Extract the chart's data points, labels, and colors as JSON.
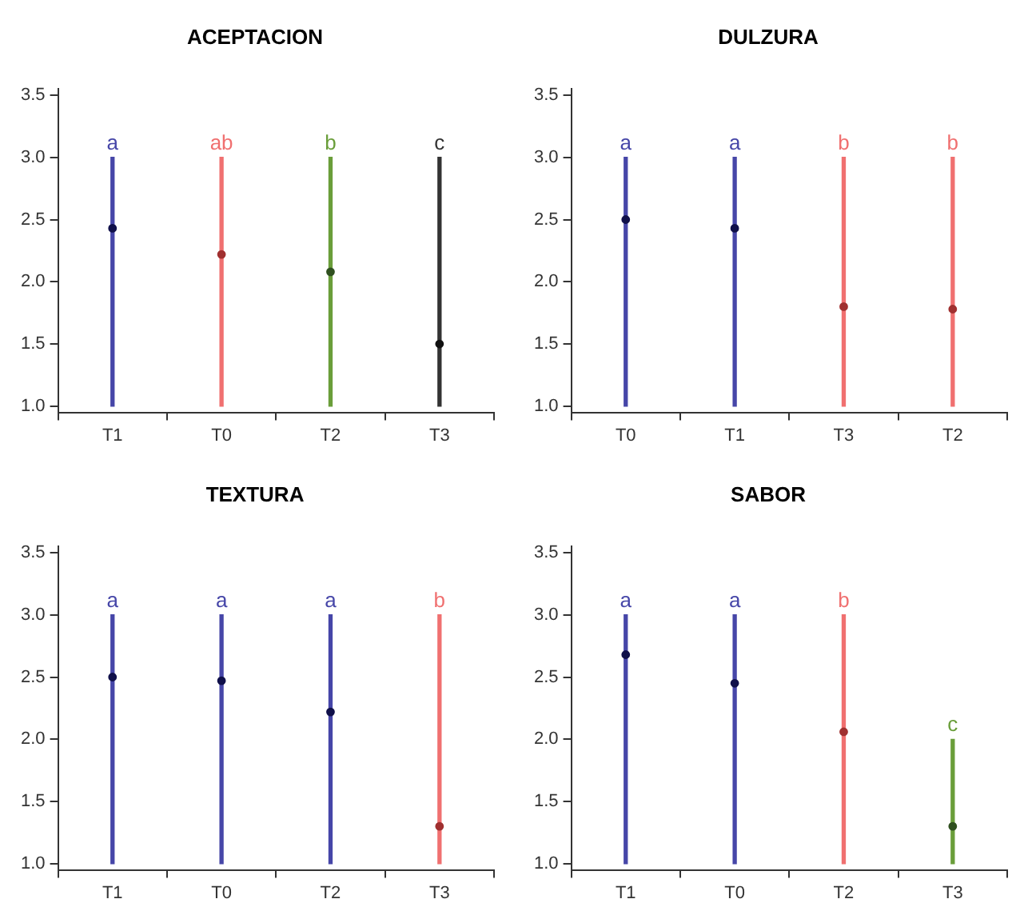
{
  "chart_data": [
    {
      "type": "bar",
      "title": "ACEPTACION",
      "categories": [
        "T1",
        "T0",
        "T2",
        "T3"
      ],
      "ylim": [
        0.95,
        3.55
      ],
      "yticks": [
        {
          "value": 1,
          "label": "1.0"
        },
        {
          "value": 1.5,
          "label": "1.5"
        },
        {
          "value": 2,
          "label": "2.0"
        },
        {
          "value": 2.5,
          "label": "2.5"
        },
        {
          "value": 3,
          "label": "3.0"
        },
        {
          "value": 3.5,
          "label": "3.5"
        }
      ],
      "grid": false,
      "legend": false,
      "marker": "circle",
      "series": [
        {
          "base": [
            1,
            1,
            1,
            1
          ],
          "values": [
            2,
            2,
            2,
            2
          ],
          "colors": [
            "#4646a8",
            "#f07070",
            "#6a9e3a",
            "#333333"
          ]
        },
        {
          "type": "scatter",
          "x": [
            "T1",
            "T0",
            "T2",
            "T3"
          ],
          "values": [
            2.43,
            2.22,
            2.08,
            1.5
          ],
          "colors": [
            "#10104a",
            "#a03030",
            "#305020",
            "#111111"
          ]
        }
      ],
      "annotations": [
        "a",
        "ab",
        "b",
        "c"
      ]
    },
    {
      "type": "bar",
      "title": "DULZURA",
      "categories": [
        "T0",
        "T1",
        "T3",
        "T2"
      ],
      "ylim": [
        0.95,
        3.55
      ],
      "yticks": [
        {
          "value": 1,
          "label": "1.0"
        },
        {
          "value": 1.5,
          "label": "1.5"
        },
        {
          "value": 2,
          "label": "2.0"
        },
        {
          "value": 2.5,
          "label": "2.5"
        },
        {
          "value": 3,
          "label": "3.0"
        },
        {
          "value": 3.5,
          "label": "3.5"
        }
      ],
      "grid": false,
      "legend": false,
      "marker": "circle",
      "series": [
        {
          "base": [
            1,
            1,
            1,
            1
          ],
          "values": [
            2,
            2,
            2,
            2
          ],
          "colors": [
            "#4646a8",
            "#4646a8",
            "#f07070",
            "#f07070"
          ]
        },
        {
          "type": "scatter",
          "x": [
            "T0",
            "T1",
            "T3",
            "T2"
          ],
          "values": [
            2.5,
            2.43,
            1.8,
            1.78
          ],
          "colors": [
            "#10104a",
            "#10104a",
            "#a03030",
            "#a03030"
          ]
        }
      ],
      "annotations": [
        "a",
        "a",
        "b",
        "b"
      ]
    },
    {
      "type": "bar",
      "title": "TEXTURA",
      "categories": [
        "T1",
        "T0",
        "T2",
        "T3"
      ],
      "ylim": [
        0.95,
        3.55
      ],
      "yticks": [
        {
          "value": 1,
          "label": "1.0"
        },
        {
          "value": 1.5,
          "label": "1.5"
        },
        {
          "value": 2,
          "label": "2.0"
        },
        {
          "value": 2.5,
          "label": "2.5"
        },
        {
          "value": 3,
          "label": "3.0"
        },
        {
          "value": 3.5,
          "label": "3.5"
        }
      ],
      "grid": false,
      "legend": false,
      "marker": "circle",
      "series": [
        {
          "base": [
            1,
            1,
            1,
            1
          ],
          "values": [
            2,
            2,
            2,
            2
          ],
          "colors": [
            "#4646a8",
            "#4646a8",
            "#4646a8",
            "#f07070"
          ]
        },
        {
          "type": "scatter",
          "x": [
            "T1",
            "T0",
            "T2",
            "T3"
          ],
          "values": [
            2.5,
            2.47,
            2.22,
            1.3
          ],
          "colors": [
            "#10104a",
            "#10104a",
            "#10104a",
            "#a03030"
          ]
        }
      ],
      "annotations": [
        "a",
        "a",
        "a",
        "b"
      ]
    },
    {
      "type": "bar",
      "title": "SABOR",
      "categories": [
        "T1",
        "T0",
        "T2",
        "T3"
      ],
      "ylim": [
        0.95,
        3.55
      ],
      "yticks": [
        {
          "value": 1,
          "label": "1.0"
        },
        {
          "value": 1.5,
          "label": "1.5"
        },
        {
          "value": 2,
          "label": "2.0"
        },
        {
          "value": 2.5,
          "label": "2.5"
        },
        {
          "value": 3,
          "label": "3.0"
        },
        {
          "value": 3.5,
          "label": "3.5"
        }
      ],
      "grid": false,
      "legend": false,
      "marker": "circle",
      "series": [
        {
          "base": [
            1,
            1,
            1,
            1
          ],
          "values": [
            2,
            2,
            2,
            1
          ],
          "colors": [
            "#4646a8",
            "#4646a8",
            "#f07070",
            "#6a9e3a"
          ]
        },
        {
          "type": "scatter",
          "x": [
            "T1",
            "T0",
            "T2",
            "T3"
          ],
          "values": [
            2.68,
            2.45,
            2.06,
            1.3
          ],
          "colors": [
            "#10104a",
            "#10104a",
            "#a03030",
            "#305020"
          ]
        }
      ],
      "annotations": [
        "a",
        "a",
        "b",
        "c"
      ]
    }
  ]
}
